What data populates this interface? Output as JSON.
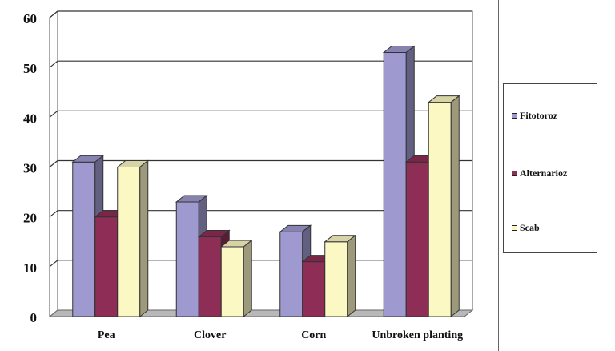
{
  "chart_data": {
    "type": "bar",
    "categories": [
      "Pea",
      "Clover",
      "Corn",
      "Unbroken planting"
    ],
    "series": [
      {
        "name": "Fitotoroz",
        "values": [
          31,
          23,
          17,
          53
        ],
        "color": "#9e9ad0"
      },
      {
        "name": "Alternarioz",
        "values": [
          20,
          16,
          11,
          31
        ],
        "color": "#8e2d55"
      },
      {
        "name": "Scab",
        "values": [
          30,
          14,
          15,
          43
        ],
        "color": "#fcf8c4"
      }
    ],
    "yticks": [
      0,
      10,
      20,
      30,
      40,
      50,
      60
    ],
    "ylim": [
      0,
      60
    ],
    "grid": true,
    "legend_position": "right",
    "title": "",
    "xlabel": "",
    "ylabel": ""
  }
}
